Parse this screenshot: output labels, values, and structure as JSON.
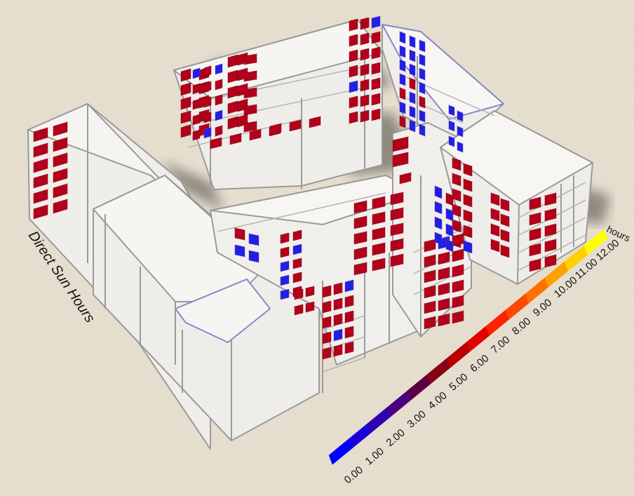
{
  "title": "Direct Sun Hours",
  "legend": {
    "unit": "hours",
    "ticks": [
      "0.00",
      "1.00",
      "2.00",
      "3.00",
      "4.00",
      "5.00",
      "6.00",
      "7.00",
      "8.00",
      "9.00",
      "10.00",
      "11.00",
      "12.00"
    ],
    "colors": [
      "#0000ff",
      "#1a00d9",
      "#3300b0",
      "#4a0080",
      "#5a0045",
      "#8a0014",
      "#b80000",
      "#e00000",
      "#ff2200",
      "#ff4800",
      "#ff7000",
      "#ffa000",
      "#ffd000",
      "#ffff00"
    ]
  },
  "colors": {
    "background": "#e9e2d2",
    "building_fill": "#f1efeb",
    "building_edge": "#9a9a9a",
    "high_sun": "#b3001b",
    "low_sun": "#2020e0"
  }
}
